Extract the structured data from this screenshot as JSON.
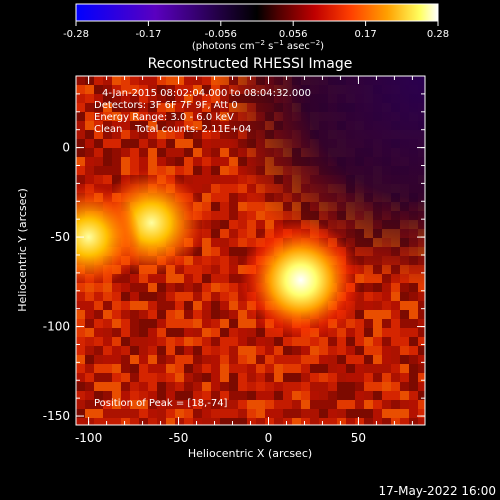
{
  "chart_data": {
    "type": "heatmap",
    "title": "Reconstructed RHESSI Image",
    "xlabel": "Heliocentric X (arcsec)",
    "ylabel": "Heliocentric Y (arcsec)",
    "xlim": [
      -107,
      87
    ],
    "ylim": [
      -155,
      40
    ],
    "x_ticks": [
      -100,
      -50,
      0,
      50
    ],
    "y_ticks": [
      0,
      -50,
      -100,
      -150
    ],
    "colorbar": {
      "min": -0.28,
      "max": 0.28,
      "tick_labels": [
        "-0.28",
        "-0.17",
        "-0.056",
        "0.056",
        "0.17",
        "0.28"
      ],
      "unit_label": "(photons cm",
      "colormap": [
        "#0000ff",
        "#5a00c0",
        "#200040",
        "#000000",
        "#500000",
        "#c00000",
        "#ff4000",
        "#ffa000",
        "#ffff60",
        "#ffffff"
      ]
    },
    "info": {
      "time_range": "4-Jan-2015 08:02:04.000 to 08:04:32.000",
      "detectors": "Detectors: 3F 6F 7F 9F, Att 0",
      "energy": "Energy Range: 3.0 - 6.0 keV",
      "clean": "Clean",
      "counts": "Total counts: 2.11E+04"
    },
    "peak_label": "Position of Peak = [18,-74]",
    "peak": [
      18,
      -74
    ],
    "sources": [
      {
        "x": 18,
        "y": -74,
        "intensity": 0.28
      },
      {
        "x": -65,
        "y": -42,
        "intensity": 0.22
      },
      {
        "x": -100,
        "y": -50,
        "intensity": 0.2
      }
    ]
  },
  "timestamp": "17-May-2022 16:00"
}
